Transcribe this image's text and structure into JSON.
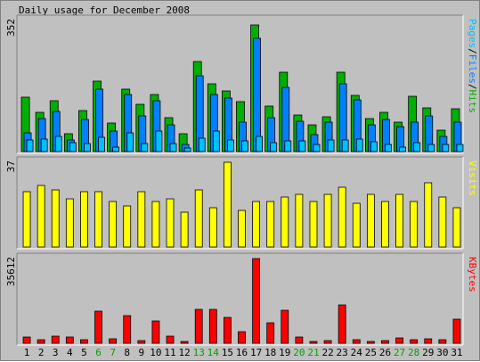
{
  "title": "Daily usage for December 2008",
  "colors": {
    "background": "#c0c0c0",
    "hits": "#00b000",
    "files": "#0080ff",
    "pages": "#00c0ff",
    "visits": "#ffff00",
    "kbytes": "#ff0000",
    "weekend_day": "#00a000",
    "weekday": "#000000"
  },
  "chart_data": [
    {
      "type": "bar",
      "title": "Daily usage for December 2008",
      "right_label_parts": [
        "Pages",
        "/",
        "Files",
        "/",
        "Hits"
      ],
      "ymax_label": "352",
      "ylim": [
        0,
        352
      ],
      "categories": [
        "1",
        "2",
        "3",
        "4",
        "5",
        "6",
        "7",
        "8",
        "9",
        "10",
        "11",
        "12",
        "13",
        "14",
        "15",
        "16",
        "17",
        "18",
        "19",
        "20",
        "21",
        "22",
        "23",
        "24",
        "25",
        "26",
        "27",
        "28",
        "29",
        "30",
        "31"
      ],
      "series": [
        {
          "name": "Hits",
          "values": [
            146,
            105,
            137,
            49,
            109,
            189,
            77,
            167,
            128,
            154,
            91,
            47,
            243,
            181,
            163,
            134,
            339,
            121,
            212,
            98,
            73,
            93,
            214,
            150,
            89,
            106,
            80,
            149,
            117,
            58,
            116
          ]
        },
        {
          "name": "Files",
          "values": [
            51,
            88,
            107,
            32,
            86,
            168,
            56,
            154,
            96,
            136,
            71,
            19,
            203,
            154,
            143,
            79,
            303,
            90,
            173,
            82,
            45,
            78,
            181,
            138,
            73,
            86,
            68,
            78,
            95,
            40,
            79
          ]
        },
        {
          "name": "Pages",
          "values": [
            30,
            34,
            40,
            24,
            22,
            38,
            13,
            50,
            22,
            55,
            21,
            9,
            35,
            55,
            32,
            28,
            40,
            23,
            28,
            28,
            20,
            31,
            32,
            34,
            27,
            20,
            13,
            23,
            18,
            20,
            19
          ]
        }
      ]
    },
    {
      "type": "bar",
      "right_label": "Visits",
      "ymax_label": "37",
      "ylim": [
        0,
        37
      ],
      "categories": [
        "1",
        "2",
        "3",
        "4",
        "5",
        "6",
        "7",
        "8",
        "9",
        "10",
        "11",
        "12",
        "13",
        "14",
        "15",
        "16",
        "17",
        "18",
        "19",
        "20",
        "21",
        "22",
        "23",
        "24",
        "25",
        "26",
        "27",
        "28",
        "29",
        "30",
        "31"
      ],
      "series": [
        {
          "name": "Visits",
          "values": [
            24,
            27,
            25,
            21,
            24,
            24,
            20,
            18,
            24,
            20,
            21,
            15,
            25,
            17,
            37,
            16,
            20,
            20,
            22,
            23,
            20,
            23,
            26,
            19,
            23,
            20,
            23,
            20,
            28,
            22,
            17
          ]
        }
      ]
    },
    {
      "type": "bar",
      "right_label": "KBytes",
      "ymax_label": "35612",
      "ylim": [
        0,
        35612
      ],
      "categories": [
        "1",
        "2",
        "3",
        "4",
        "5",
        "6",
        "7",
        "8",
        "9",
        "10",
        "11",
        "12",
        "13",
        "14",
        "15",
        "16",
        "17",
        "18",
        "19",
        "20",
        "21",
        "22",
        "23",
        "24",
        "25",
        "26",
        "27",
        "28",
        "29",
        "30",
        "31"
      ],
      "series": [
        {
          "name": "KBytes",
          "values": [
            2600,
            1650,
            3100,
            2500,
            1500,
            13600,
            1700,
            11800,
            1050,
            9200,
            2900,
            750,
            14400,
            14200,
            11000,
            4800,
            35612,
            8800,
            14000,
            2500,
            720,
            950,
            16100,
            1350,
            870,
            1130,
            2300,
            1560,
            1760,
            1390,
            10300
          ]
        }
      ]
    }
  ],
  "x_axis": {
    "weekend_days": [
      "6",
      "7",
      "13",
      "14",
      "20",
      "21",
      "27",
      "28"
    ]
  }
}
